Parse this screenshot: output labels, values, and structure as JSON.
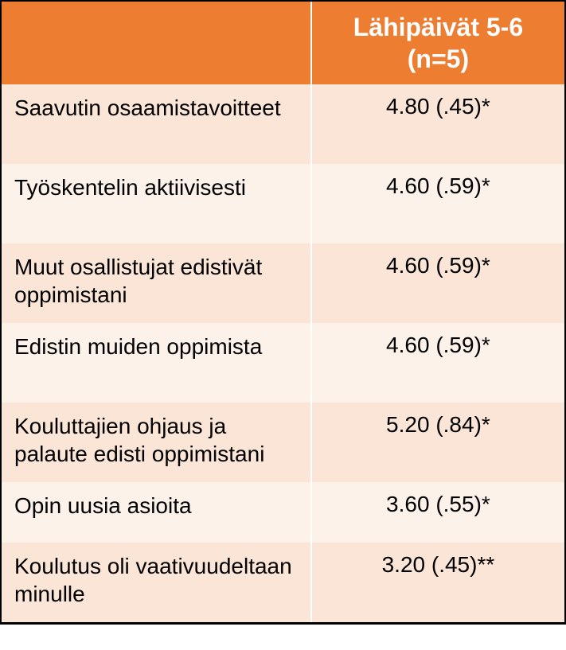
{
  "table": {
    "type": "table",
    "header": {
      "blank": "",
      "value_col": "Lähipäivät 5-6 (n=5)"
    },
    "colors": {
      "header_bg": "#ed7d31",
      "header_text": "#ffffff",
      "row_odd_bg": "#fbe5d6",
      "row_even_bg": "#fdf2ea",
      "cell_text": "#000000",
      "border": "#000000",
      "cell_divider": "#ffffff"
    },
    "typography": {
      "header_fontsize": 32,
      "header_weight": 700,
      "cell_fontsize": 28,
      "font_family": "Arial"
    },
    "columns": [
      {
        "key": "label",
        "width_pct": 55,
        "align": "left"
      },
      {
        "key": "value",
        "width_pct": 45,
        "align": "center"
      }
    ],
    "rows": [
      {
        "label": "Saavutin osaamistavoitteet",
        "value": "4.80 (.45)*"
      },
      {
        "label": "Työskentelin aktiivisesti",
        "value": "4.60 (.59)*"
      },
      {
        "label": "Muut osallistujat edistivät oppimistani",
        "value": "4.60 (.59)*"
      },
      {
        "label": "Edistin muiden oppimista",
        "value": "4.60 (.59)*"
      },
      {
        "label": "Kouluttajien ohjaus ja palaute edisti oppimistani",
        "value": "5.20 (.84)*"
      },
      {
        "label": "Opin uusia asioita",
        "value": "3.60 (.55)*"
      },
      {
        "label": "Koulutus oli vaativuudeltaan minulle",
        "value": "3.20 (.45)**"
      }
    ]
  }
}
